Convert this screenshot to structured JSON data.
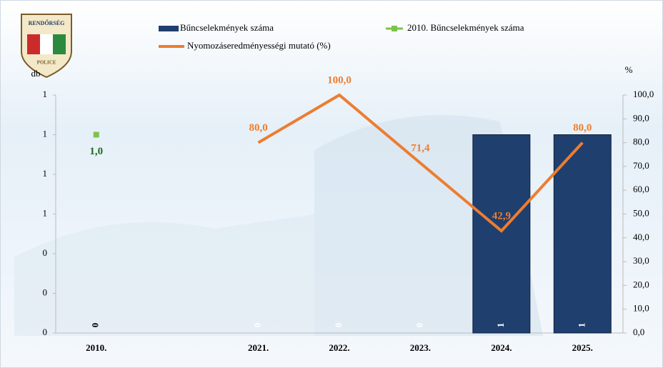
{
  "logo": {
    "top": "RENDŐRSÉG",
    "bottom": "POLICE"
  },
  "chart_data": {
    "type": "bar-line",
    "y_label": "db",
    "y2_label": "%",
    "categories": [
      "2010.",
      null,
      "2021.",
      "2022.",
      "2023.",
      "2024.",
      "2025."
    ],
    "ylim": [
      0,
      1.2
    ],
    "yticks": [
      0,
      {
        "value": 0.2,
        "label": "0"
      },
      {
        "value": 0.4,
        "label": "0"
      },
      {
        "value": 0.6,
        "label": "1"
      },
      {
        "value": 0.8,
        "label": "1"
      },
      {
        "value": 1.0,
        "label": "1"
      },
      {
        "value": 1.2,
        "label": "1"
      }
    ],
    "y2lim": [
      0,
      100
    ],
    "y2ticks": [
      {
        "value": 0,
        "label": "0,0"
      },
      {
        "value": 10,
        "label": "10,0"
      },
      {
        "value": 20,
        "label": "20,0"
      },
      {
        "value": 30,
        "label": "30,0"
      },
      {
        "value": 40,
        "label": "40,0"
      },
      {
        "value": 50,
        "label": "50,0"
      },
      {
        "value": 60,
        "label": "60,0"
      },
      {
        "value": 70,
        "label": "70,0"
      },
      {
        "value": 80,
        "label": "80,0"
      },
      {
        "value": 90,
        "label": "90,0"
      },
      {
        "value": 100,
        "label": "100,0"
      }
    ],
    "series": [
      {
        "name": "Bűncselekmények száma",
        "kind": "bar",
        "color": "#1f3f6e",
        "values": [
          0,
          null,
          0,
          0,
          0,
          1,
          1
        ],
        "label_colors": [
          "#000000",
          null,
          "#ffffff",
          "#ffffff",
          "#ffffff",
          "#ffffff",
          "#ffffff"
        ]
      },
      {
        "name": "2010. Bűncselekmények száma",
        "kind": "marker",
        "color": "#7dc24a",
        "label_color": "#1e6b1e",
        "values": [
          1,
          null,
          null,
          null,
          null,
          null,
          null
        ],
        "value_labels": [
          "1,0",
          null,
          null,
          null,
          null,
          null,
          null
        ]
      },
      {
        "name": "Nyomozáseredményességi mutató (%)",
        "kind": "line",
        "axis": "y2",
        "color": "#ed7d31",
        "values": [
          null,
          null,
          80,
          100,
          71.4,
          42.9,
          80
        ],
        "value_labels": [
          null,
          null,
          "80,0",
          "100,0",
          "71,4",
          "42,9",
          "80,0"
        ]
      }
    ]
  }
}
